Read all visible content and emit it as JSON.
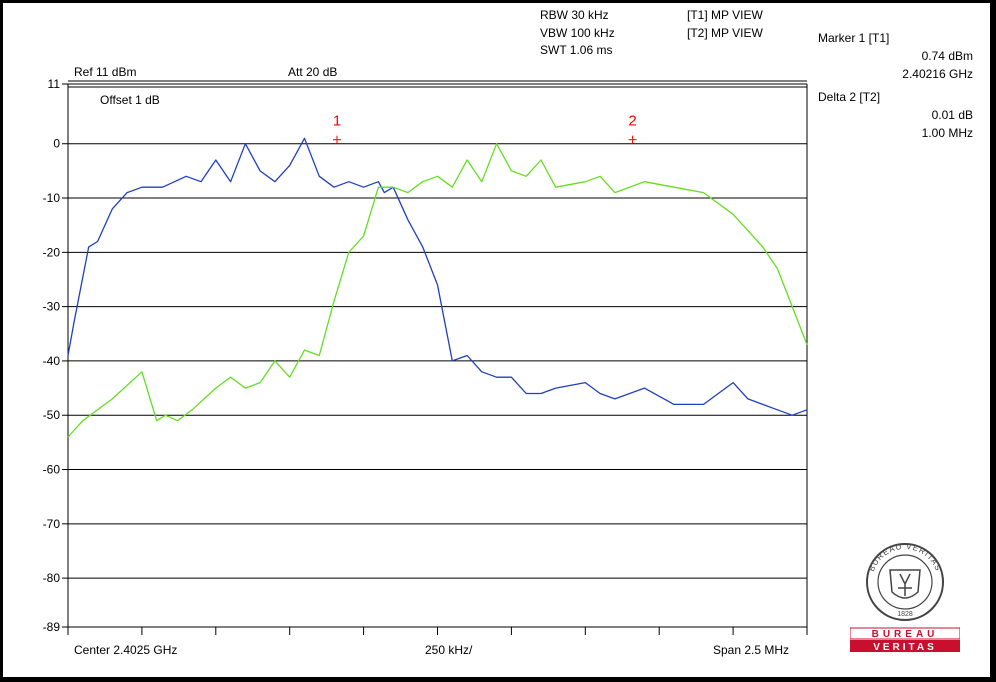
{
  "header": {
    "rbw": "RBW 30 kHz",
    "vbw": "VBW 100 kHz",
    "swt": "SWT 1.06 ms",
    "t1_mode": "[T1] MP VIEW",
    "t2_mode": "[T2] MP VIEW",
    "ref": "Ref 11 dBm",
    "att": "Att  20 dB",
    "offset": "Offset 1 dB"
  },
  "markers": {
    "m1_title": "Marker 1 [T1]",
    "m1_level": "0.74 dBm",
    "m1_freq": "2.40216 GHz",
    "d2_title": "Delta 2 [T2]",
    "d2_level": "0.01 dB",
    "d2_freq": "1.00 MHz",
    "m1_label": "1",
    "m2_label": "2",
    "marker_color": "#ff0000"
  },
  "footer": {
    "center": "Center 2.4025 GHz",
    "div": "250 kHz/",
    "span": "Span 2.5 MHz"
  },
  "logo": {
    "ring_text": "BUREAU VERITAS",
    "year": "1828",
    "word1": "BUREAU",
    "word2": "VERITAS",
    "brand_color": "#c8102e"
  },
  "chart_data": {
    "type": "line",
    "x_unit": "MHz offset from center",
    "xlim": [
      -1.25,
      1.25
    ],
    "ylim": [
      -89,
      11
    ],
    "y_ticks": [
      11,
      0,
      -10,
      -20,
      -30,
      -40,
      -50,
      -60,
      -70,
      -80,
      -89
    ],
    "y_tick_labels": [
      "11",
      "0",
      "-10",
      "-20",
      "-30",
      "-40",
      "-50",
      "-60",
      "-70",
      "-80",
      "-89"
    ],
    "grid": true,
    "series": [
      {
        "trace": "T1",
        "color": "#1f3fbf",
        "x": [
          -1.25,
          -1.23,
          -1.18,
          -1.15,
          -1.1,
          -1.05,
          -1.0,
          -0.93,
          -0.85,
          -0.8,
          -0.75,
          -0.7,
          -0.65,
          -0.6,
          -0.55,
          -0.5,
          -0.45,
          -0.4,
          -0.35,
          -0.3,
          -0.25,
          -0.2,
          -0.18,
          -0.15,
          -0.1,
          -0.05,
          0.0,
          0.05,
          0.1,
          0.15,
          0.2,
          0.25,
          0.3,
          0.35,
          0.4,
          0.5,
          0.55,
          0.6,
          0.7,
          0.8,
          0.9,
          1.0,
          1.05,
          1.1,
          1.15,
          1.2,
          1.25
        ],
        "y": [
          -39,
          -33,
          -19,
          -18,
          -12,
          -9,
          -8,
          -8,
          -6,
          -7,
          -3,
          -7,
          0,
          -5,
          -7,
          -4,
          1,
          -6,
          -8,
          -7,
          -8,
          -7,
          -9,
          -8,
          -14,
          -19,
          -26,
          -40,
          -39,
          -42,
          -43,
          -43,
          -46,
          -46,
          -45,
          -44,
          -46,
          -47,
          -45,
          -48,
          -48,
          -44,
          -47,
          -48,
          -49,
          -50,
          -49
        ]
      },
      {
        "trace": "T2",
        "color": "#66dd22",
        "x": [
          -1.25,
          -1.2,
          -1.1,
          -1.0,
          -0.95,
          -0.92,
          -0.88,
          -0.83,
          -0.75,
          -0.7,
          -0.65,
          -0.6,
          -0.55,
          -0.5,
          -0.45,
          -0.4,
          -0.35,
          -0.3,
          -0.25,
          -0.2,
          -0.15,
          -0.1,
          -0.05,
          0.0,
          0.05,
          0.1,
          0.15,
          0.2,
          0.25,
          0.3,
          0.35,
          0.4,
          0.5,
          0.55,
          0.6,
          0.7,
          0.8,
          0.9,
          1.0,
          1.05,
          1.1,
          1.15,
          1.2,
          1.25
        ],
        "y": [
          -54,
          -51,
          -47,
          -42,
          -51,
          -50,
          -51,
          -49,
          -45,
          -43,
          -45,
          -44,
          -40,
          -43,
          -38,
          -39,
          -29,
          -20,
          -17,
          -8,
          -8,
          -9,
          -7,
          -6,
          -8,
          -3,
          -7,
          0,
          -5,
          -6,
          -3,
          -8,
          -7,
          -6,
          -9,
          -7,
          -8,
          -9,
          -13,
          -16,
          -19,
          -23,
          -30,
          -37
        ]
      }
    ],
    "markers": [
      {
        "label": "1",
        "x": -0.34,
        "y": 0.74
      },
      {
        "label": "2",
        "x": 0.66,
        "y": 0.75
      }
    ]
  }
}
